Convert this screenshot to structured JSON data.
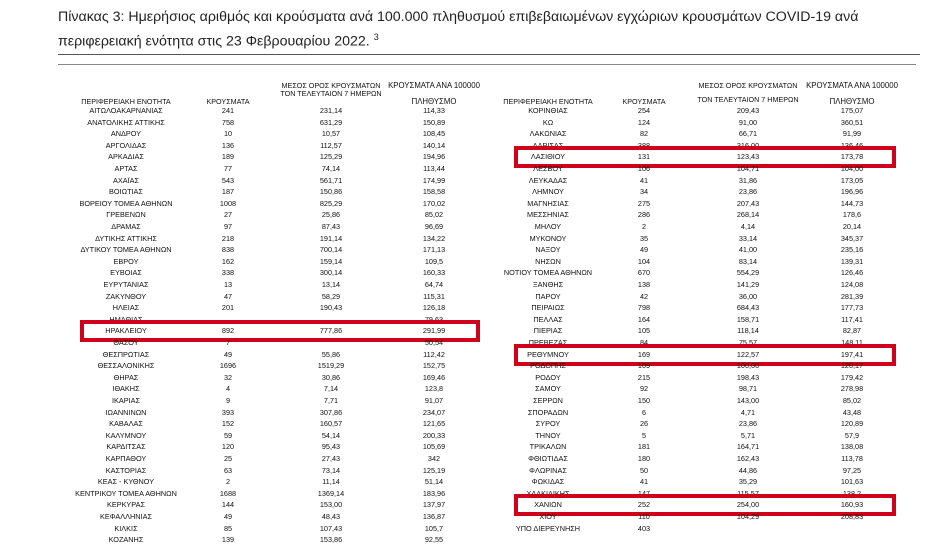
{
  "caption": {
    "text": "Πίνακας 3: Ημερήσιος αριθμός και κρούσματα ανά 100.000 πληθυσμού επιβεβαιωμένων εγχώριων κρουσμάτων COVID-19 ανά περιφερειακή ενότητα στις 23 Φεβρουαρίου 2022.",
    "footnote": "3"
  },
  "headers": {
    "region": "ΠΕΡΙΦΕΡΕΙΑΚΗ ΕΝΟΤΗΤΑ",
    "cases": "ΚΡΟΥΣΜΑΤΑ",
    "avg_line1": "ΜΕΣΟΣ ΟΡΟΣ ΚΡΟΥΣΜΑΤΩΝ",
    "avg_line2": "ΤΟΝ ΤΕΛΕΥΤΑΙΟΝ 7 ΗΜΕΡΩΝ",
    "per_line1": "ΚΡΟΥΣΜΑΤΑ ΑΝΑ 100000",
    "per_line2": "ΠΛΗΘΥΣΜΟ"
  },
  "highlight_color": "#d0021b",
  "left_rows": [
    {
      "region": "ΑΙΤΩΛΟΑΚΑΡΝΑΝΙΑΣ",
      "cases": "241",
      "avg": "231,14",
      "per": "114,33"
    },
    {
      "region": "ΑΝΑΤΟΛΙΚΗΣ ΑΤΤΙΚΗΣ",
      "cases": "758",
      "avg": "631,29",
      "per": "150,89"
    },
    {
      "region": "ΑΝΔΡΟΥ",
      "cases": "10",
      "avg": "10,57",
      "per": "108,45"
    },
    {
      "region": "ΑΡΓΟΛΙΔΑΣ",
      "cases": "136",
      "avg": "112,57",
      "per": "140,14"
    },
    {
      "region": "ΑΡΚΑΔΙΑΣ",
      "cases": "189",
      "avg": "125,29",
      "per": "194,96"
    },
    {
      "region": "ΑΡΤΑΣ",
      "cases": "77",
      "avg": "74,14",
      "per": "113,44"
    },
    {
      "region": "ΑΧΑΪΑΣ",
      "cases": "543",
      "avg": "561,71",
      "per": "174,99"
    },
    {
      "region": "ΒΟΙΩΤΙΑΣ",
      "cases": "187",
      "avg": "150,86",
      "per": "158,58"
    },
    {
      "region": "ΒΟΡΕΙΟΥ ΤΟΜΕΑ ΑΘΗΝΩΝ",
      "cases": "1008",
      "avg": "825,29",
      "per": "170,02"
    },
    {
      "region": "ΓΡΕΒΕΝΩΝ",
      "cases": "27",
      "avg": "25,86",
      "per": "85,02"
    },
    {
      "region": "ΔΡΑΜΑΣ",
      "cases": "97",
      "avg": "87,43",
      "per": "96,69"
    },
    {
      "region": "ΔΥΤΙΚΗΣ ΑΤΤΙΚΗΣ",
      "cases": "218",
      "avg": "191,14",
      "per": "134,22"
    },
    {
      "region": "ΔΥΤΙΚΟΥ ΤΟΜΕΑ ΑΘΗΝΩΝ",
      "cases": "838",
      "avg": "700,14",
      "per": "171,13"
    },
    {
      "region": "ΕΒΡΟΥ",
      "cases": "162",
      "avg": "159,14",
      "per": "109,5"
    },
    {
      "region": "ΕΥΒΟΙΑΣ",
      "cases": "338",
      "avg": "300,14",
      "per": "160,33"
    },
    {
      "region": "ΕΥΡΥΤΑΝΙΑΣ",
      "cases": "13",
      "avg": "13,14",
      "per": "64,74"
    },
    {
      "region": "ΖΑΚΥΝΘΟΥ",
      "cases": "47",
      "avg": "58,29",
      "per": "115,31"
    },
    {
      "region": "ΗΛΕΙΑΣ",
      "cases": "201",
      "avg": "190,43",
      "per": "126,18"
    },
    {
      "region": "ΗΜΑΘΙΑΣ",
      "cases": "",
      "avg": "",
      "per": "79,63"
    },
    {
      "region": "ΗΡΑΚΛΕΙΟΥ",
      "cases": "892",
      "avg": "777,86",
      "per": "291,99",
      "highlight": true
    },
    {
      "region": "ΘΑΣΟΥ",
      "cases": "7",
      "avg": "",
      "per": "50,54"
    },
    {
      "region": "ΘΕΣΠΡΩΤΙΑΣ",
      "cases": "49",
      "avg": "55,86",
      "per": "112,42"
    },
    {
      "region": "ΘΕΣΣΑΛΟΝΙΚΗΣ",
      "cases": "1696",
      "avg": "1519,29",
      "per": "152,75"
    },
    {
      "region": "ΘΗΡΑΣ",
      "cases": "32",
      "avg": "30,86",
      "per": "169,46"
    },
    {
      "region": "ΙΘΑΚΗΣ",
      "cases": "4",
      "avg": "7,14",
      "per": "123,8"
    },
    {
      "region": "ΙΚΑΡΙΑΣ",
      "cases": "9",
      "avg": "7,71",
      "per": "91,07"
    },
    {
      "region": "ΙΩΑΝΝΙΝΩΝ",
      "cases": "393",
      "avg": "307,86",
      "per": "234,07"
    },
    {
      "region": "ΚΑΒΑΛΑΣ",
      "cases": "152",
      "avg": "160,57",
      "per": "121,65"
    },
    {
      "region": "ΚΑΛΥΜΝΟΥ",
      "cases": "59",
      "avg": "54,14",
      "per": "200,33"
    },
    {
      "region": "ΚΑΡΔΙΤΣΑΣ",
      "cases": "120",
      "avg": "95,43",
      "per": "105,69"
    },
    {
      "region": "ΚΑΡΠΑΘΟΥ",
      "cases": "25",
      "avg": "27,43",
      "per": "342"
    },
    {
      "region": "ΚΑΣΤΟΡΙΑΣ",
      "cases": "63",
      "avg": "73,14",
      "per": "125,19"
    },
    {
      "region": "ΚΕΑΣ - ΚΥΘΝΟΥ",
      "cases": "2",
      "avg": "11,14",
      "per": "51,14"
    },
    {
      "region": "ΚΕΝΤΡΙΚΟΥ ΤΟΜΕΑ ΑΘΗΝΩΝ",
      "cases": "1688",
      "avg": "1369,14",
      "per": "183,96"
    },
    {
      "region": "ΚΕΡΚΥΡΑΣ",
      "cases": "144",
      "avg": "153,00",
      "per": "137,97"
    },
    {
      "region": "ΚΕΦΑΛΛΗΝΙΑΣ",
      "cases": "49",
      "avg": "48,43",
      "per": "136,87"
    },
    {
      "region": "ΚΙΛΚΙΣ",
      "cases": "85",
      "avg": "107,43",
      "per": "105,7"
    },
    {
      "region": "ΚΟΖΑΝΗΣ",
      "cases": "139",
      "avg": "153,86",
      "per": "92,55"
    }
  ],
  "right_rows": [
    {
      "region": "ΚΟΡΙΝΘΙΑΣ",
      "cases": "254",
      "avg": "209,43",
      "per": "175,07"
    },
    {
      "region": "ΚΩ",
      "cases": "124",
      "avg": "91,00",
      "per": "360,51"
    },
    {
      "region": "ΛΑΚΩΝΙΑΣ",
      "cases": "82",
      "avg": "66,71",
      "per": "91,99"
    },
    {
      "region": "ΛΑΡΙΣΑΣ",
      "cases": "388",
      "avg": "316,00",
      "per": "136,46"
    },
    {
      "region": "ΛΑΣΙΘΙΟΥ",
      "cases": "131",
      "avg": "123,43",
      "per": "173,78",
      "highlight": true
    },
    {
      "region": "ΛΕΣΒΟΥ",
      "cases": "106",
      "avg": "104,71",
      "per": "104,00"
    },
    {
      "region": "ΛΕΥΚΑΔΑΣ",
      "cases": "41",
      "avg": "31,86",
      "per": "173,05"
    },
    {
      "region": "ΛΗΜΝΟΥ",
      "cases": "34",
      "avg": "23,86",
      "per": "196,96"
    },
    {
      "region": "ΜΑΓΝΗΣΙΑΣ",
      "cases": "275",
      "avg": "207,43",
      "per": "144,73"
    },
    {
      "region": "ΜΕΣΣΗΝΙΑΣ",
      "cases": "286",
      "avg": "268,14",
      "per": "178,6"
    },
    {
      "region": "ΜΗΛΟΥ",
      "cases": "2",
      "avg": "4,14",
      "per": "20,14"
    },
    {
      "region": "ΜΥΚΟΝΟΥ",
      "cases": "35",
      "avg": "33,14",
      "per": "345,37"
    },
    {
      "region": "ΝΑΞΟΥ",
      "cases": "49",
      "avg": "41,00",
      "per": "235,16"
    },
    {
      "region": "ΝΗΣΩΝ",
      "cases": "104",
      "avg": "83,14",
      "per": "139,31"
    },
    {
      "region": "ΝΟΤΙΟΥ ΤΟΜΕΑ ΑΘΗΝΩΝ",
      "cases": "670",
      "avg": "554,29",
      "per": "126,46"
    },
    {
      "region": "ΞΑΝΘΗΣ",
      "cases": "138",
      "avg": "141,29",
      "per": "124,08"
    },
    {
      "region": "ΠΑΡΟΥ",
      "cases": "42",
      "avg": "36,00",
      "per": "281,39"
    },
    {
      "region": "ΠΕΙΡΑΙΩΣ",
      "cases": "798",
      "avg": "684,43",
      "per": "177,73"
    },
    {
      "region": "ΠΕΛΛΑΣ",
      "cases": "164",
      "avg": "158,71",
      "per": "117,41"
    },
    {
      "region": "ΠΙΕΡΙΑΣ",
      "cases": "105",
      "avg": "118,14",
      "per": "82,87"
    },
    {
      "region": "ΠΡΕΒΕΖΑΣ",
      "cases": "84",
      "avg": "75,57",
      "per": "148,11"
    },
    {
      "region": "ΡΕΘΥΜΝΟΥ",
      "cases": "169",
      "avg": "122,57",
      "per": "197,41",
      "highlight": true
    },
    {
      "region": "ΡΟΔΟΠΗΣ",
      "cases": "109",
      "avg": "100,00",
      "per": "120,17"
    },
    {
      "region": "ΡΟΔΟΥ",
      "cases": "215",
      "avg": "198,43",
      "per": "179,42"
    },
    {
      "region": "ΣΑΜΟΥ",
      "cases": "92",
      "avg": "98,71",
      "per": "278,98"
    },
    {
      "region": "ΣΕΡΡΩΝ",
      "cases": "150",
      "avg": "143,00",
      "per": "85,02"
    },
    {
      "region": "ΣΠΟΡΑΔΩΝ",
      "cases": "6",
      "avg": "4,71",
      "per": "43,48"
    },
    {
      "region": "ΣΥΡΟΥ",
      "cases": "26",
      "avg": "23,86",
      "per": "120,89"
    },
    {
      "region": "ΤΗΝΟΥ",
      "cases": "5",
      "avg": "5,71",
      "per": "57,9"
    },
    {
      "region": "ΤΡΙΚΑΛΩΝ",
      "cases": "181",
      "avg": "164,71",
      "per": "138,08"
    },
    {
      "region": "ΦΘΙΩΤΙΔΑΣ",
      "cases": "180",
      "avg": "162,43",
      "per": "113,78"
    },
    {
      "region": "ΦΛΩΡΙΝΑΣ",
      "cases": "50",
      "avg": "44,86",
      "per": "97,25"
    },
    {
      "region": "ΦΩΚΙΔΑΣ",
      "cases": "41",
      "avg": "35,29",
      "per": "101,63"
    },
    {
      "region": "ΧΑΛΚΙΔΙΚΗΣ",
      "cases": "147",
      "avg": "115,57",
      "per": "138,2"
    },
    {
      "region": "ΧΑΝΙΩΝ",
      "cases": "252",
      "avg": "254,00",
      "per": "160,93",
      "highlight": true
    },
    {
      "region": "ΧΙΟΥ",
      "cases": "110",
      "avg": "104,29",
      "per": "208,83"
    },
    {
      "region": "ΥΠΟ ΔΙΕΡΕΥΝΗΣΗ",
      "cases": "403",
      "avg": "",
      "per": ""
    }
  ]
}
